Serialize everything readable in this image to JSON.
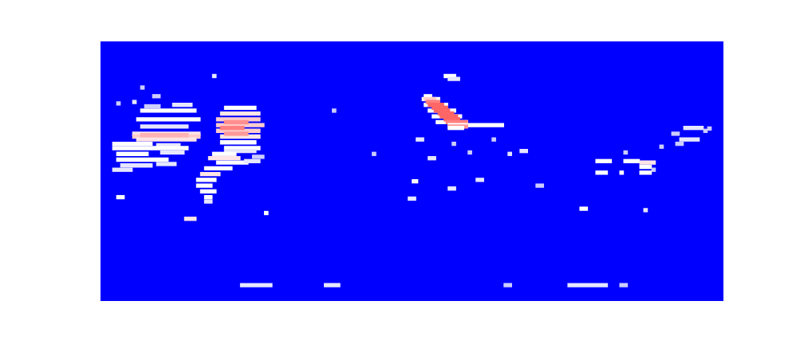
{
  "chart_data": {
    "type": "heatmap",
    "xlim": [
      0,
      156
    ],
    "ylim": [
      0,
      80
    ],
    "vlim": [
      0,
      1
    ],
    "grid": false,
    "tick_labels": false,
    "cells": [
      [
        10,
        24,
        61,
        0.5
      ],
      [
        11,
        15,
        62.5,
        0.4
      ],
      [
        18,
        23,
        63,
        0.45
      ],
      [
        9,
        25,
        58,
        0.5
      ],
      [
        10,
        22,
        55.5,
        0.45
      ],
      [
        8,
        25,
        53,
        0.55
      ],
      [
        8,
        25,
        52,
        0.6
      ],
      [
        9,
        24,
        51,
        0.55
      ],
      [
        10,
        22,
        52.5,
        0.65
      ],
      [
        3,
        13,
        49.5,
        0.5
      ],
      [
        14,
        20,
        49,
        0.45
      ],
      [
        3,
        22,
        48,
        0.5
      ],
      [
        4,
        12,
        46,
        0.5
      ],
      [
        15,
        21,
        46.5,
        0.45
      ],
      [
        4,
        17,
        44,
        0.5
      ],
      [
        5,
        13,
        42,
        0.45
      ],
      [
        14,
        19,
        42.5,
        0.45
      ],
      [
        3,
        8,
        40.5,
        0.45
      ],
      [
        8,
        9,
        64,
        0.45
      ],
      [
        10,
        11,
        69,
        0.4
      ],
      [
        28,
        29,
        73,
        0.45
      ],
      [
        13,
        15,
        66,
        0.4
      ],
      [
        4,
        5,
        63.5,
        0.4
      ],
      [
        31,
        39,
        62,
        0.5
      ],
      [
        30,
        40,
        60,
        0.55
      ],
      [
        29,
        40,
        58,
        0.6
      ],
      [
        29,
        41,
        56,
        0.6
      ],
      [
        29,
        40,
        54,
        0.6
      ],
      [
        30,
        40,
        52,
        0.55
      ],
      [
        30,
        39,
        50,
        0.5
      ],
      [
        31,
        40,
        48,
        0.5
      ],
      [
        31,
        39,
        47,
        0.45
      ],
      [
        31,
        37,
        57,
        0.72
      ],
      [
        30,
        36,
        55,
        0.75
      ],
      [
        31,
        37,
        53,
        0.7
      ],
      [
        28,
        34,
        46,
        0.5
      ],
      [
        27,
        35,
        44.5,
        0.55
      ],
      [
        29,
        37,
        43,
        0.5
      ],
      [
        26,
        33,
        41,
        0.5
      ],
      [
        25,
        30,
        39,
        0.55
      ],
      [
        24,
        29,
        37,
        0.5
      ],
      [
        24,
        28,
        35,
        0.5
      ],
      [
        25,
        29,
        33,
        0.5
      ],
      [
        26,
        28,
        31,
        0.5
      ],
      [
        26,
        28,
        29.5,
        0.45
      ],
      [
        36,
        40,
        43.5,
        0.45
      ],
      [
        38,
        41,
        45,
        0.4
      ],
      [
        4,
        6,
        31,
        0.5
      ],
      [
        21,
        24,
        23.5,
        0.55
      ],
      [
        41,
        42,
        25.5,
        0.5
      ],
      [
        58,
        59,
        61,
        0.4
      ],
      [
        35,
        43,
        0.5,
        0.45
      ],
      [
        56,
        60,
        0.5,
        0.45
      ],
      [
        101,
        103,
        0.5,
        0.4
      ],
      [
        117,
        127,
        0.5,
        0.45
      ],
      [
        130,
        132,
        0.5,
        0.4
      ],
      [
        86,
        89,
        73,
        0.5
      ],
      [
        87,
        90,
        72,
        0.45
      ],
      [
        80.5,
        85,
        65,
        0.5
      ],
      [
        81,
        87,
        63,
        0.5
      ],
      [
        82,
        89,
        61,
        0.5
      ],
      [
        83,
        90.5,
        59,
        0.5
      ],
      [
        84,
        92,
        57,
        0.5
      ],
      [
        81,
        83,
        66,
        0.5
      ],
      [
        81,
        84,
        65,
        0.6
      ],
      [
        81.5,
        85,
        64,
        0.75
      ],
      [
        82,
        86,
        63,
        0.8
      ],
      [
        83,
        87,
        62,
        0.8
      ],
      [
        83.5,
        87.5,
        61,
        0.8
      ],
      [
        84.5,
        88.5,
        60,
        0.8
      ],
      [
        85,
        89.5,
        59,
        0.8
      ],
      [
        86,
        90,
        58,
        0.8
      ],
      [
        86.5,
        92,
        57,
        0.75
      ],
      [
        87,
        101,
        56,
        0.5
      ],
      [
        87,
        92,
        55.5,
        0.7
      ],
      [
        87,
        91,
        55,
        0.5
      ],
      [
        79,
        81,
        51,
        0.45
      ],
      [
        68,
        69,
        46,
        0.4
      ],
      [
        82,
        84,
        44.5,
        0.45
      ],
      [
        92,
        93,
        46.5,
        0.4
      ],
      [
        102,
        103,
        46,
        0.45
      ],
      [
        105,
        107,
        47,
        0.45
      ],
      [
        78,
        79.5,
        36.5,
        0.5
      ],
      [
        87,
        89,
        34,
        0.45
      ],
      [
        94,
        96,
        37,
        0.45
      ],
      [
        109,
        111,
        35,
        0.4
      ],
      [
        77,
        79,
        30.5,
        0.45
      ],
      [
        88,
        89,
        49.5,
        0.4
      ],
      [
        98,
        99,
        51,
        0.4
      ],
      [
        124,
        128,
        43.5,
        0.5
      ],
      [
        131,
        135,
        43.5,
        0.5
      ],
      [
        135,
        139,
        43,
        0.55
      ],
      [
        135,
        138,
        41.5,
        0.5
      ],
      [
        124,
        127,
        39.5,
        0.5
      ],
      [
        130,
        131,
        39.5,
        0.5
      ],
      [
        135,
        138,
        39.5,
        0.5
      ],
      [
        138,
        139,
        40.5,
        0.4
      ],
      [
        131,
        132,
        46.5,
        0.4
      ],
      [
        140,
        141,
        48.5,
        0.4
      ],
      [
        145,
        150,
        51,
        0.45
      ],
      [
        144,
        146,
        49.5,
        0.4
      ],
      [
        146,
        151,
        55,
        0.45
      ],
      [
        151,
        152,
        54,
        0.4
      ],
      [
        143,
        145,
        53,
        0.4
      ],
      [
        120,
        122,
        27,
        0.5
      ],
      [
        136,
        137,
        26.5,
        0.45
      ],
      [
        152,
        153,
        54.8,
        0.4
      ]
    ]
  }
}
